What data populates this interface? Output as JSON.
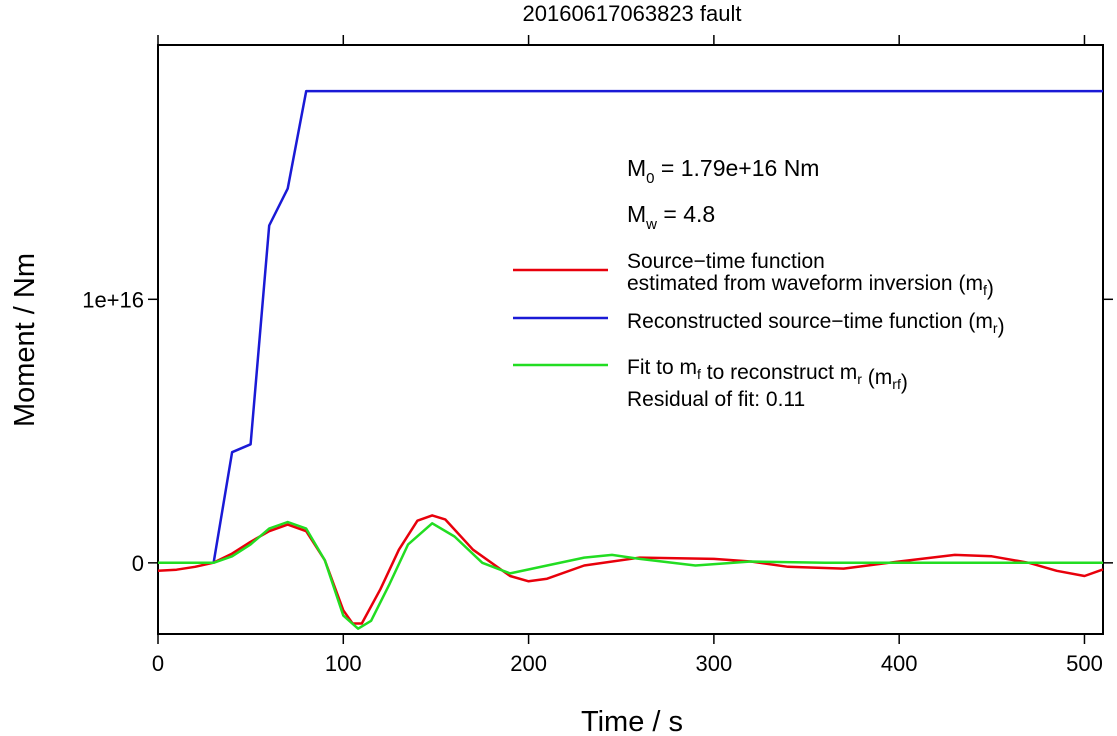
{
  "chart_data": {
    "type": "line",
    "title": "20160617063823 fault",
    "xlabel": "Time / s",
    "ylabel": "Moment / Nm",
    "xlim": [
      0,
      510
    ],
    "ylim": [
      -2700000000000000.0,
      1.965e+16
    ],
    "x_ticks": [
      0,
      100,
      200,
      300,
      400,
      500
    ],
    "x_tick_labels": [
      "0",
      "100",
      "200",
      "300",
      "400",
      "500"
    ],
    "y_ticks": [
      0,
      1e+16
    ],
    "y_tick_labels": [
      "0",
      "1e+16"
    ],
    "grid": false,
    "legend_position": "right",
    "stats": [
      {
        "sym": "M",
        "sub": "0",
        "text": " = 1.79e+16 Nm"
      },
      {
        "sym": "M",
        "sub": "w",
        "text": " = 4.8"
      }
    ],
    "series": [
      {
        "name_parts": [
          {
            "line": "Source−time function",
            "pieces": []
          },
          {
            "line": "",
            "pieces": [
              {
                "t": "estimated from waveform inversion (m"
              },
              {
                "sub": "f"
              },
              {
                "t": ")"
              }
            ]
          }
        ],
        "color": "#e8000b",
        "x": [
          0,
          10,
          20,
          30,
          40,
          50,
          60,
          70,
          80,
          90,
          100,
          105,
          110,
          120,
          130,
          140,
          148,
          155,
          170,
          190,
          200,
          210,
          230,
          260,
          300,
          320,
          340,
          370,
          400,
          430,
          450,
          470,
          485,
          500,
          510
        ],
        "y": [
          -300000000000000.0,
          -260000000000000.0,
          -150000000000000.0,
          10000000000000.0,
          350000000000000.0,
          800000000000000.0,
          1200000000000000.0,
          1450000000000000.0,
          1200000000000000.0,
          100000000000000.0,
          -1800000000000000.0,
          -2300000000000000.0,
          -2300000000000000.0,
          -1000000000000000.0,
          500000000000000.0,
          1600000000000000.0,
          1800000000000000.0,
          1650000000000000.0,
          500000000000000.0,
          -500000000000000.0,
          -700000000000000.0,
          -600000000000000.0,
          -100000000000000.0,
          200000000000000.0,
          150000000000000.0,
          50000000000000.0,
          -150000000000000.0,
          -220000000000000.0,
          50000000000000.0,
          300000000000000.0,
          250000000000000.0,
          0,
          -300000000000000.0,
          -500000000000000.0,
          -250000000000000.0
        ]
      },
      {
        "name_parts": [
          {
            "line": "",
            "pieces": [
              {
                "t": "Reconstructed source−time function (m"
              },
              {
                "sub": "r"
              },
              {
                "t": ")"
              }
            ]
          }
        ],
        "color": "#1a1ad6",
        "x": [
          0,
          30,
          40,
          50,
          60,
          70,
          80,
          510
        ],
        "y": [
          0,
          0,
          4200000000000000.0,
          4500000000000000.0,
          1.28e+16,
          1.42e+16,
          1.79e+16,
          1.79e+16
        ]
      },
      {
        "name_parts": [
          {
            "line": "",
            "pieces": [
              {
                "t": "Fit to m"
              },
              {
                "sub": "f"
              },
              {
                "t": " to reconstruct m"
              },
              {
                "sub": "r"
              },
              {
                "t": " (m"
              },
              {
                "sub": "rf"
              },
              {
                "t": ")"
              }
            ]
          }
        ],
        "color": "#22dd22",
        "x": [
          0,
          20,
          30,
          40,
          50,
          60,
          70,
          80,
          90,
          100,
          108,
          115,
          125,
          135,
          148,
          160,
          175,
          190,
          210,
          230,
          245,
          260,
          290,
          320,
          360,
          400,
          510
        ],
        "y": [
          0,
          0,
          0,
          250000000000000.0,
          700000000000000.0,
          1300000000000000.0,
          1550000000000000.0,
          1300000000000000.0,
          100000000000000.0,
          -2000000000000000.0,
          -2500000000000000.0,
          -2200000000000000.0,
          -800000000000000.0,
          700000000000000.0,
          1500000000000000.0,
          1000000000000000.0,
          0,
          -400000000000000.0,
          -100000000000000.0,
          200000000000000.0,
          300000000000000.0,
          150000000000000.0,
          -100000000000000.0,
          50000000000000.0,
          0,
          0,
          0
        ]
      }
    ],
    "annotations": [
      "Residual of fit: 0.11"
    ]
  }
}
